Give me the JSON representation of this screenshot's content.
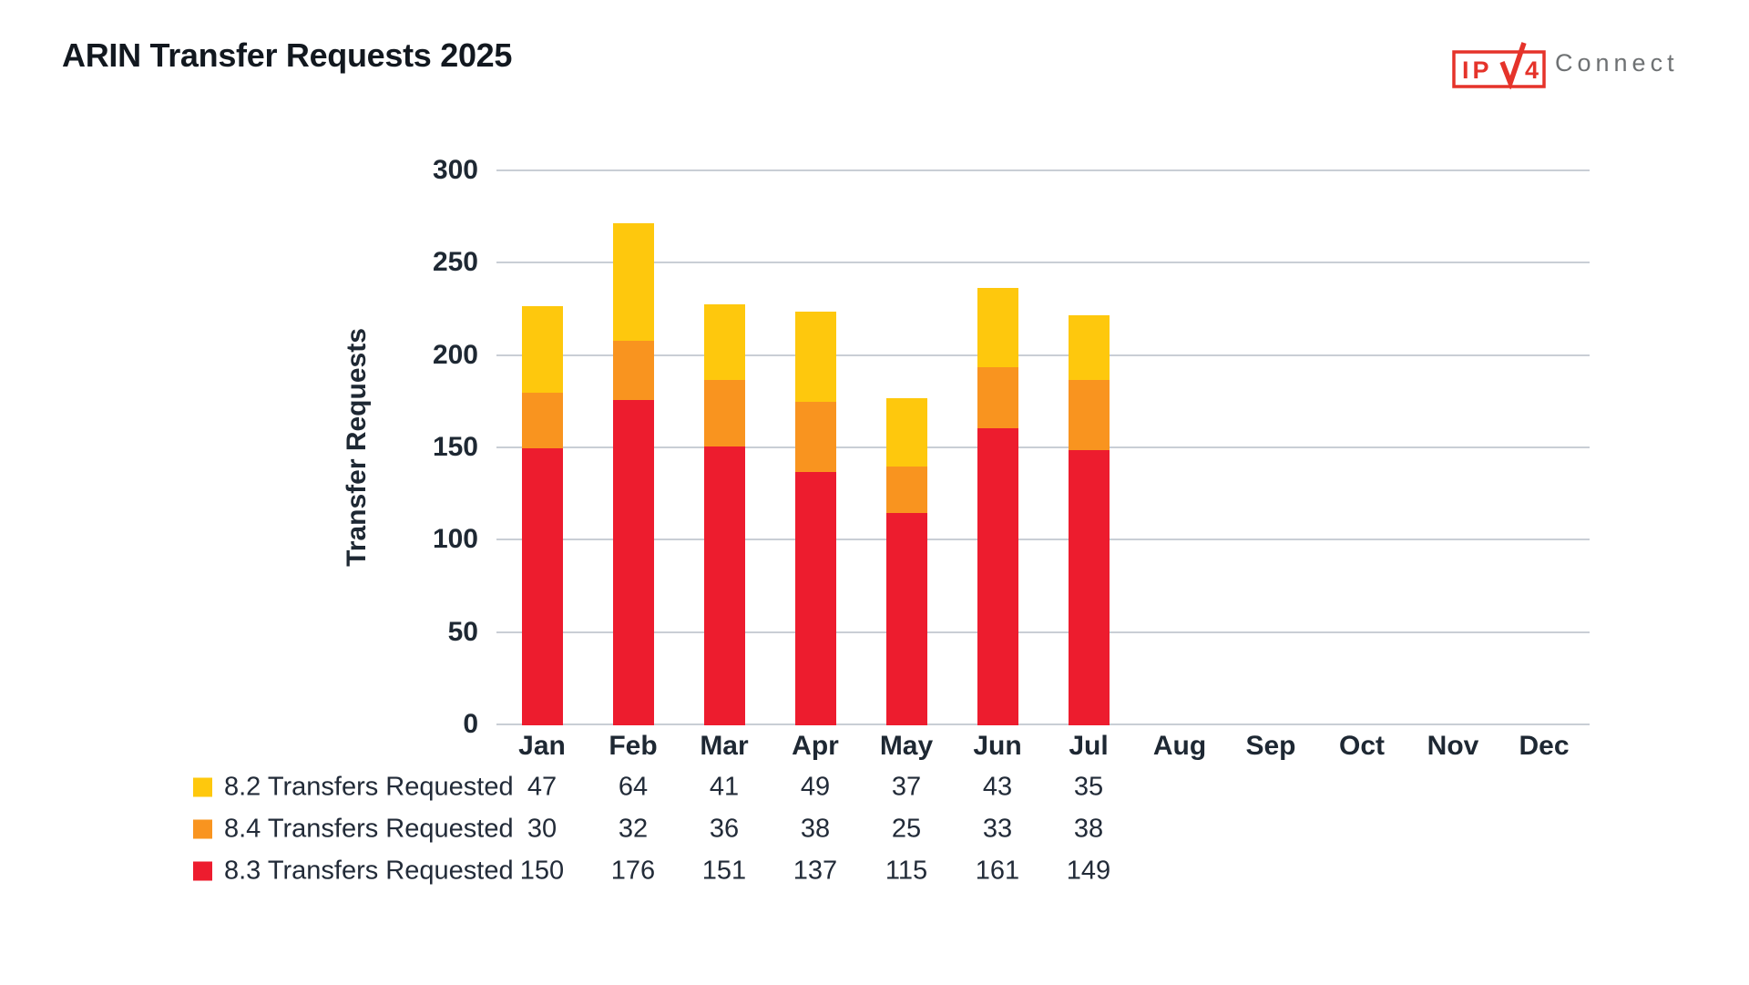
{
  "header": {
    "title": "ARIN Transfer Requests 2025"
  },
  "logo": {
    "prefix": "IP",
    "digit": "4",
    "suffix": "Connect",
    "box_color": "#E5332A",
    "suffix_color": "#6E7173"
  },
  "colors": {
    "background": "#FFFFFF",
    "text_dark": "#1E2833",
    "gridline": "#C9CED5",
    "series_yellow": "#FEC80D",
    "series_orange": "#F9941F",
    "series_red": "#ED1C2E"
  },
  "chart_data": {
    "type": "bar",
    "stacked": true,
    "title": "ARIN Transfer Requests 2025",
    "xlabel": "",
    "ylabel": "Transfer Requests",
    "ylim": [
      0,
      300
    ],
    "yticks": [
      0,
      50,
      100,
      150,
      200,
      250,
      300
    ],
    "grid": true,
    "legend_position": "bottom-left-table",
    "categories": [
      "Jan",
      "Feb",
      "Mar",
      "Apr",
      "May",
      "Jun",
      "Jul",
      "Aug",
      "Sep",
      "Oct",
      "Nov",
      "Dec"
    ],
    "series": [
      {
        "name": "8.2 Transfers Requested",
        "color": "#FEC80D",
        "stack_position": "top",
        "values": [
          47,
          64,
          41,
          49,
          37,
          43,
          35
        ]
      },
      {
        "name": "8.4 Transfers Requested",
        "color": "#F9941F",
        "stack_position": "middle",
        "values": [
          30,
          32,
          36,
          38,
          25,
          33,
          38
        ]
      },
      {
        "name": "8.3 Transfers Requested",
        "color": "#ED1C2E",
        "stack_position": "bottom",
        "values": [
          150,
          176,
          151,
          137,
          115,
          161,
          149
        ]
      }
    ]
  }
}
